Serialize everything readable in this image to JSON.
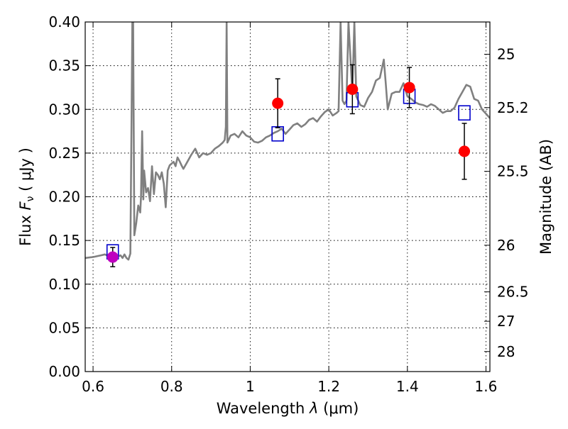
{
  "chart_data": {
    "type": "scatter",
    "title": "",
    "xlabel": "Wavelength  λ (μm)",
    "ylabel": "Flux  F_ν  ( μJy )",
    "ylabel_parts": {
      "pre": "Flux  ",
      "sym": "F",
      "sub": "ν",
      "post": "  ( μJy )"
    },
    "xlabel_parts": {
      "pre": "Wavelength  ",
      "sym": "λ",
      "post": " (μm)"
    },
    "y2label": "Magnitude (AB)",
    "xlim": [
      0.58,
      1.61
    ],
    "ylim": [
      0.0,
      0.4
    ],
    "grid": true,
    "x_ticks": [
      {
        "value": 0.6,
        "label": "0.6"
      },
      {
        "value": 0.8,
        "label": "0.8"
      },
      {
        "value": 1.0,
        "label": "1"
      },
      {
        "value": 1.2,
        "label": "1.2"
      },
      {
        "value": 1.4,
        "label": "1.4"
      },
      {
        "value": 1.6,
        "label": "1.6"
      }
    ],
    "y_ticks": [
      {
        "value": 0.0,
        "label": "0.00"
      },
      {
        "value": 0.05,
        "label": "0.05"
      },
      {
        "value": 0.1,
        "label": "0.10"
      },
      {
        "value": 0.15,
        "label": "0.15"
      },
      {
        "value": 0.2,
        "label": "0.20"
      },
      {
        "value": 0.25,
        "label": "0.25"
      },
      {
        "value": 0.3,
        "label": "0.30"
      },
      {
        "value": 0.35,
        "label": "0.35"
      },
      {
        "value": 0.4,
        "label": "0.40"
      }
    ],
    "y2_ticks": [
      {
        "mag": 25,
        "label": "25"
      },
      {
        "mag": 25.2,
        "label": "25.2"
      },
      {
        "mag": 25.5,
        "label": "25.5"
      },
      {
        "mag": 26,
        "label": "26"
      },
      {
        "mag": 26.5,
        "label": "26.5"
      },
      {
        "mag": 27,
        "label": "27"
      },
      {
        "mag": 28,
        "label": "28"
      }
    ],
    "colors": {
      "spectrum": "#808080",
      "observed": "#ff0000",
      "observed_alt": "#bf00bf",
      "model_box": "#0000cc",
      "errorbar": "#000000",
      "grid": "#000000"
    },
    "series": [
      {
        "kind": "line",
        "x": [
          0.58,
          0.6,
          0.62,
          0.63,
          0.64,
          0.65,
          0.66,
          0.67,
          0.675,
          0.68,
          0.685,
          0.69,
          0.695,
          0.698,
          0.7,
          0.702,
          0.705,
          0.71,
          0.715,
          0.72,
          0.722,
          0.725,
          0.728,
          0.73,
          0.735,
          0.74,
          0.745,
          0.75,
          0.755,
          0.76,
          0.765,
          0.77,
          0.775,
          0.78,
          0.785,
          0.79,
          0.795,
          0.8,
          0.805,
          0.81,
          0.815,
          0.82,
          0.825,
          0.83,
          0.84,
          0.85,
          0.86,
          0.87,
          0.88,
          0.89,
          0.9,
          0.91,
          0.92,
          0.93,
          0.935,
          0.938,
          0.94,
          0.942,
          0.945,
          0.95,
          0.96,
          0.97,
          0.98,
          0.99,
          1.0,
          1.01,
          1.02,
          1.03,
          1.04,
          1.05,
          1.06,
          1.07,
          1.08,
          1.09,
          1.1,
          1.11,
          1.12,
          1.13,
          1.14,
          1.15,
          1.16,
          1.17,
          1.18,
          1.19,
          1.2,
          1.21,
          1.22,
          1.225,
          1.23,
          1.235,
          1.24,
          1.245,
          1.25,
          1.26,
          1.265,
          1.27,
          1.28,
          1.29,
          1.3,
          1.31,
          1.32,
          1.33,
          1.34,
          1.345,
          1.35,
          1.36,
          1.37,
          1.38,
          1.39,
          1.4,
          1.41,
          1.42,
          1.43,
          1.44,
          1.45,
          1.46,
          1.47,
          1.48,
          1.49,
          1.5,
          1.51,
          1.52,
          1.53,
          1.54,
          1.55,
          1.56,
          1.57,
          1.58,
          1.59,
          1.6,
          1.61
        ],
        "y": [
          0.13,
          0.131,
          0.133,
          0.134,
          0.132,
          0.133,
          0.131,
          0.133,
          0.13,
          0.134,
          0.13,
          0.128,
          0.135,
          0.29,
          0.4,
          0.4,
          0.156,
          0.17,
          0.19,
          0.182,
          0.2,
          0.275,
          0.197,
          0.23,
          0.205,
          0.21,
          0.195,
          0.235,
          0.203,
          0.228,
          0.225,
          0.22,
          0.228,
          0.215,
          0.188,
          0.23,
          0.236,
          0.238,
          0.24,
          0.235,
          0.245,
          0.241,
          0.236,
          0.232,
          0.24,
          0.248,
          0.255,
          0.245,
          0.25,
          0.248,
          0.25,
          0.255,
          0.258,
          0.262,
          0.265,
          0.28,
          0.4,
          0.262,
          0.265,
          0.27,
          0.272,
          0.268,
          0.275,
          0.27,
          0.268,
          0.263,
          0.262,
          0.264,
          0.268,
          0.27,
          0.273,
          0.275,
          0.278,
          0.272,
          0.277,
          0.282,
          0.284,
          0.28,
          0.283,
          0.288,
          0.29,
          0.286,
          0.292,
          0.297,
          0.3,
          0.293,
          0.296,
          0.298,
          0.4,
          0.31,
          0.306,
          0.31,
          0.4,
          0.318,
          0.4,
          0.315,
          0.305,
          0.303,
          0.313,
          0.32,
          0.333,
          0.336,
          0.357,
          0.33,
          0.3,
          0.318,
          0.32,
          0.32,
          0.33,
          0.315,
          0.312,
          0.308,
          0.306,
          0.305,
          0.303,
          0.306,
          0.304,
          0.3,
          0.296,
          0.298,
          0.298,
          0.302,
          0.312,
          0.32,
          0.328,
          0.326,
          0.312,
          0.31,
          0.3,
          0.295,
          0.29
        ]
      },
      {
        "kind": "model-boxes",
        "x": [
          0.65,
          1.07,
          1.26,
          1.405,
          1.545
        ],
        "y": [
          0.137,
          0.272,
          0.311,
          0.315,
          0.296
        ]
      },
      {
        "kind": "observed",
        "x": [
          0.65,
          1.07,
          1.26,
          1.405,
          1.545
        ],
        "y": [
          0.131,
          0.307,
          0.323,
          0.325,
          0.252
        ],
        "yerr": [
          0.011,
          0.028,
          0.028,
          0.023,
          0.032
        ],
        "marker_color_key": [
          "observed_alt",
          "observed",
          "observed",
          "observed",
          "observed"
        ]
      }
    ]
  }
}
